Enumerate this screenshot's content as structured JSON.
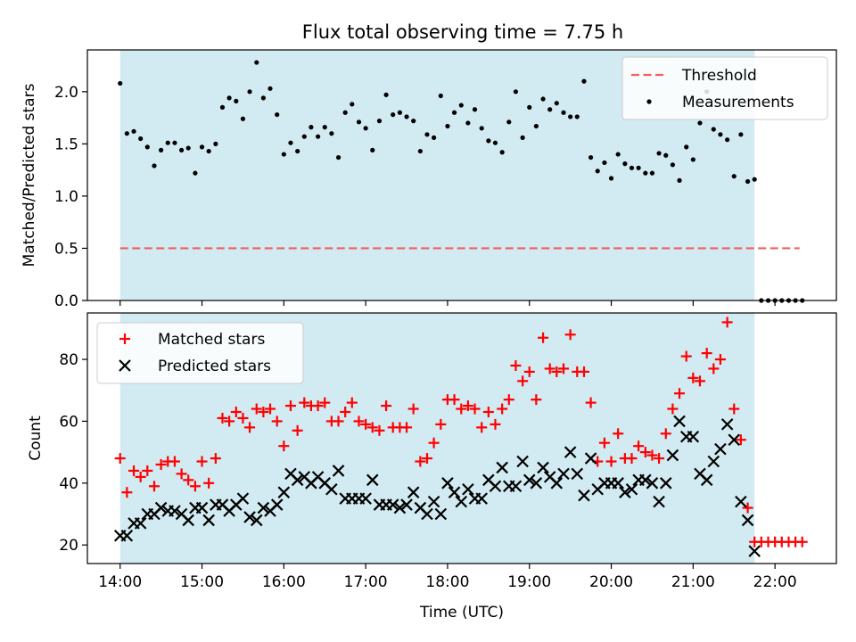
{
  "title": "Flux total observing time = 7.75 h",
  "colors": {
    "observing_span": "#add8e6",
    "threshold": "#f06060",
    "measurements": "#000000",
    "matched": "#ff0000",
    "predicted": "#000000"
  },
  "chart_data": [
    {
      "type": "scatter",
      "ylabel": "Matched/Predicted stars",
      "xlabel": "",
      "x_unit": "hours (UTC)",
      "xlim": [
        13.6,
        22.75
      ],
      "ylim": [
        0.0,
        2.4
      ],
      "yticks": [
        0.0,
        0.5,
        1.0,
        1.5,
        2.0
      ],
      "ytick_labels": [
        "0.0",
        "0.5",
        "1.0",
        "1.5",
        "2.0"
      ],
      "x_tick_labels_shown": false,
      "grid": false,
      "legend_position": "upper right",
      "shaded_span": {
        "from": 14.0,
        "to": 21.75
      },
      "threshold": {
        "name": "Threshold",
        "y": 0.5,
        "x_from": 14.0,
        "x_to": 22.3,
        "style": "dashed"
      },
      "series": [
        {
          "name": "Measurements",
          "marker": "dot",
          "x": [
            14.0,
            14.083,
            14.167,
            14.25,
            14.333,
            14.417,
            14.5,
            14.583,
            14.667,
            14.75,
            14.833,
            14.917,
            15.0,
            15.083,
            15.167,
            15.25,
            15.333,
            15.417,
            15.5,
            15.583,
            15.667,
            15.75,
            15.833,
            15.917,
            16.0,
            16.083,
            16.167,
            16.25,
            16.333,
            16.417,
            16.5,
            16.583,
            16.667,
            16.75,
            16.833,
            16.917,
            17.0,
            17.083,
            17.167,
            17.25,
            17.333,
            17.417,
            17.5,
            17.583,
            17.667,
            17.75,
            17.833,
            17.917,
            18.0,
            18.083,
            18.167,
            18.25,
            18.333,
            18.417,
            18.5,
            18.583,
            18.667,
            18.75,
            18.833,
            18.917,
            19.0,
            19.083,
            19.167,
            19.25,
            19.333,
            19.417,
            19.5,
            19.583,
            19.667,
            19.75,
            19.833,
            19.917,
            20.0,
            20.083,
            20.167,
            20.25,
            20.333,
            20.417,
            20.5,
            20.583,
            20.667,
            20.75,
            20.833,
            20.917,
            21.0,
            21.083,
            21.167,
            21.25,
            21.333,
            21.417,
            21.5,
            21.583,
            21.667,
            21.75,
            21.833,
            21.917,
            22.0,
            22.083,
            22.167,
            22.25,
            22.333
          ],
          "y": [
            2.08,
            1.6,
            1.62,
            1.55,
            1.47,
            1.29,
            1.44,
            1.51,
            1.51,
            1.44,
            1.46,
            1.22,
            1.47,
            1.43,
            1.5,
            1.85,
            1.94,
            1.91,
            1.74,
            2.0,
            2.28,
            1.94,
            2.03,
            1.78,
            1.4,
            1.51,
            1.43,
            1.57,
            1.66,
            1.57,
            1.66,
            1.6,
            1.37,
            1.8,
            1.88,
            1.71,
            1.65,
            1.44,
            1.72,
            1.97,
            1.78,
            1.8,
            1.76,
            1.72,
            1.43,
            1.59,
            1.56,
            1.96,
            1.67,
            1.8,
            1.87,
            1.7,
            1.83,
            1.65,
            1.53,
            1.51,
            1.42,
            1.71,
            2.0,
            1.56,
            1.85,
            1.67,
            1.93,
            1.83,
            1.89,
            1.8,
            1.76,
            1.76,
            2.1,
            1.37,
            1.24,
            1.32,
            1.17,
            1.4,
            1.31,
            1.27,
            1.27,
            1.22,
            1.22,
            1.41,
            1.39,
            1.3,
            1.15,
            1.47,
            1.35,
            1.7,
            2.0,
            1.64,
            1.59,
            1.54,
            1.19,
            1.59,
            1.14,
            1.16,
            0.0,
            0.0,
            0.0,
            0.0,
            0.0,
            0.0,
            0.0
          ]
        }
      ]
    },
    {
      "type": "scatter",
      "xlabel": "Time (UTC)",
      "ylabel": "Count",
      "x_unit": "hours (UTC)",
      "xlim": [
        13.6,
        22.75
      ],
      "ylim": [
        14,
        95
      ],
      "xticks": [
        14,
        15,
        16,
        17,
        18,
        19,
        20,
        21,
        22
      ],
      "xtick_labels": [
        "14:00",
        "15:00",
        "16:00",
        "17:00",
        "18:00",
        "19:00",
        "20:00",
        "21:00",
        "22:00"
      ],
      "yticks": [
        20,
        40,
        60,
        80
      ],
      "ytick_labels": [
        "20",
        "40",
        "60",
        "80"
      ],
      "grid": false,
      "legend_position": "upper left",
      "shaded_span": {
        "from": 14.0,
        "to": 21.75
      },
      "series": [
        {
          "name": "Matched stars",
          "marker": "plus",
          "x": [
            14.0,
            14.083,
            14.167,
            14.25,
            14.333,
            14.417,
            14.5,
            14.583,
            14.667,
            14.75,
            14.833,
            14.917,
            15.0,
            15.083,
            15.167,
            15.25,
            15.333,
            15.417,
            15.5,
            15.583,
            15.667,
            15.75,
            15.833,
            15.917,
            16.0,
            16.083,
            16.167,
            16.25,
            16.333,
            16.417,
            16.5,
            16.583,
            16.667,
            16.75,
            16.833,
            16.917,
            17.0,
            17.083,
            17.167,
            17.25,
            17.333,
            17.417,
            17.5,
            17.583,
            17.667,
            17.75,
            17.833,
            17.917,
            18.0,
            18.083,
            18.167,
            18.25,
            18.333,
            18.417,
            18.5,
            18.583,
            18.667,
            18.75,
            18.833,
            18.917,
            19.0,
            19.083,
            19.167,
            19.25,
            19.333,
            19.417,
            19.5,
            19.583,
            19.667,
            19.75,
            19.833,
            19.917,
            20.0,
            20.083,
            20.167,
            20.25,
            20.333,
            20.417,
            20.5,
            20.583,
            20.667,
            20.75,
            20.833,
            20.917,
            21.0,
            21.083,
            21.167,
            21.25,
            21.333,
            21.417,
            21.5,
            21.583,
            21.667,
            21.75,
            21.833,
            21.917,
            22.0,
            22.083,
            22.167,
            22.25,
            22.333
          ],
          "y": [
            48,
            37,
            44,
            42,
            44,
            39,
            46,
            47,
            47,
            43,
            41,
            39,
            47,
            40,
            48,
            61,
            60,
            63,
            61,
            58,
            64,
            63,
            64,
            60,
            52,
            65,
            57,
            66,
            65,
            65,
            66,
            60,
            60,
            63,
            66,
            60,
            59,
            58,
            57,
            65,
            58,
            58,
            58,
            64,
            47,
            48,
            53,
            59,
            67,
            67,
            64,
            65,
            64,
            58,
            63,
            59,
            64,
            67,
            78,
            73,
            76,
            67,
            87,
            77,
            76,
            77,
            88,
            76,
            76,
            66,
            47,
            53,
            47,
            56,
            48,
            48,
            52,
            50,
            49,
            48,
            56,
            64,
            69,
            81,
            74,
            73,
            82,
            77,
            80,
            92,
            64,
            54,
            32,
            21,
            21,
            21,
            21,
            21,
            21,
            21,
            21
          ]
        },
        {
          "name": "Predicted stars",
          "marker": "x",
          "x": [
            14.0,
            14.083,
            14.167,
            14.25,
            14.333,
            14.417,
            14.5,
            14.583,
            14.667,
            14.75,
            14.833,
            14.917,
            15.0,
            15.083,
            15.167,
            15.25,
            15.333,
            15.417,
            15.5,
            15.583,
            15.667,
            15.75,
            15.833,
            15.917,
            16.0,
            16.083,
            16.167,
            16.25,
            16.333,
            16.417,
            16.5,
            16.583,
            16.667,
            16.75,
            16.833,
            16.917,
            17.0,
            17.083,
            17.167,
            17.25,
            17.333,
            17.417,
            17.5,
            17.583,
            17.667,
            17.75,
            17.833,
            17.917,
            18.0,
            18.083,
            18.167,
            18.25,
            18.333,
            18.417,
            18.5,
            18.583,
            18.667,
            18.75,
            18.833,
            18.917,
            19.0,
            19.083,
            19.167,
            19.25,
            19.333,
            19.417,
            19.5,
            19.583,
            19.667,
            19.75,
            19.833,
            19.917,
            20.0,
            20.083,
            20.167,
            20.25,
            20.333,
            20.417,
            20.5,
            20.583,
            20.667,
            20.75,
            20.833,
            20.917,
            21.0,
            21.083,
            21.167,
            21.25,
            21.333,
            21.417,
            21.5,
            21.583,
            21.667,
            21.75
          ],
          "y": [
            23,
            23,
            27,
            27,
            30,
            30,
            32,
            31,
            31,
            30,
            28,
            32,
            32,
            28,
            33,
            33,
            31,
            33,
            35,
            29,
            28,
            32,
            31,
            33,
            37,
            43,
            41,
            42,
            40,
            42,
            40,
            38,
            44,
            35,
            35,
            35,
            35,
            41,
            33,
            33,
            33,
            32,
            33,
            37,
            32,
            30,
            34,
            30,
            40,
            37,
            34,
            38,
            35,
            35,
            41,
            39,
            45,
            39,
            39,
            47,
            41,
            40,
            45,
            42,
            40,
            43,
            50,
            43,
            36,
            48,
            38,
            40,
            40,
            40,
            37,
            38,
            41,
            41,
            40,
            34,
            40,
            49,
            60,
            55,
            55,
            43,
            41,
            47,
            51,
            59,
            54,
            34,
            28,
            18
          ]
        }
      ]
    }
  ],
  "legends": {
    "top": [
      "Threshold",
      "Measurements"
    ],
    "bottom": [
      "Matched stars",
      "Predicted stars"
    ]
  }
}
